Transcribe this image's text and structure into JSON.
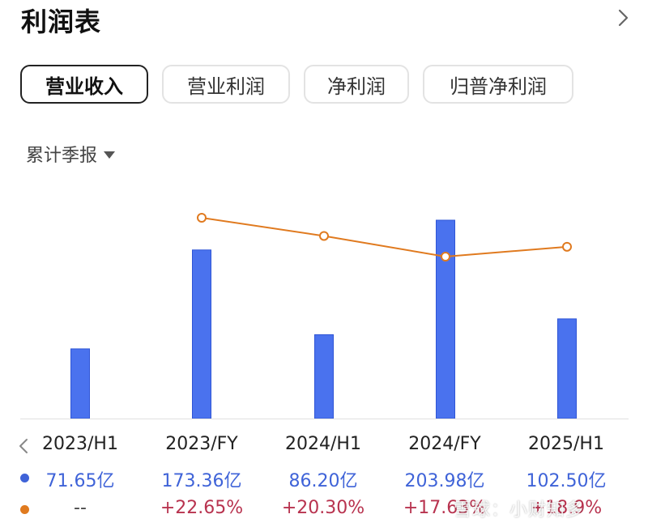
{
  "page": {
    "title": "利润表"
  },
  "tabs": [
    {
      "label": "营业收入",
      "active": true
    },
    {
      "label": "营业利润",
      "active": false
    },
    {
      "label": "净利润",
      "active": false
    },
    {
      "label": "归普净利润",
      "active": false
    }
  ],
  "period_selector": {
    "label": "累计季报",
    "icon": "caret-down-icon"
  },
  "nav": {
    "back_icon": "chevron-left-icon",
    "more_icon": "chevron-right-icon"
  },
  "chart_data": {
    "type": "bar",
    "categories": [
      "2023/H1",
      "2023/FY",
      "2024/H1",
      "2024/FY",
      "2025/H1"
    ],
    "series": [
      {
        "values": [
          71.65,
          173.36,
          86.2,
          203.98,
          102.5
        ],
        "color": "#4a72ee"
      },
      {
        "type": "line",
        "values": [
          null,
          22.65,
          20.3,
          17.63,
          18.9
        ],
        "color": "#e07a1f"
      }
    ],
    "revenue_labels": [
      "71.65亿",
      "173.36亿",
      "86.20亿",
      "203.98亿",
      "102.50亿"
    ],
    "growth_labels": [
      "--",
      "+22.65%",
      "+20.30%",
      "+17.63%",
      "+18.9%"
    ],
    "legend_colors": {
      "revenue": "#3f63d8",
      "growth": "#e07a1f"
    }
  },
  "watermark": "雪球：小财知多"
}
